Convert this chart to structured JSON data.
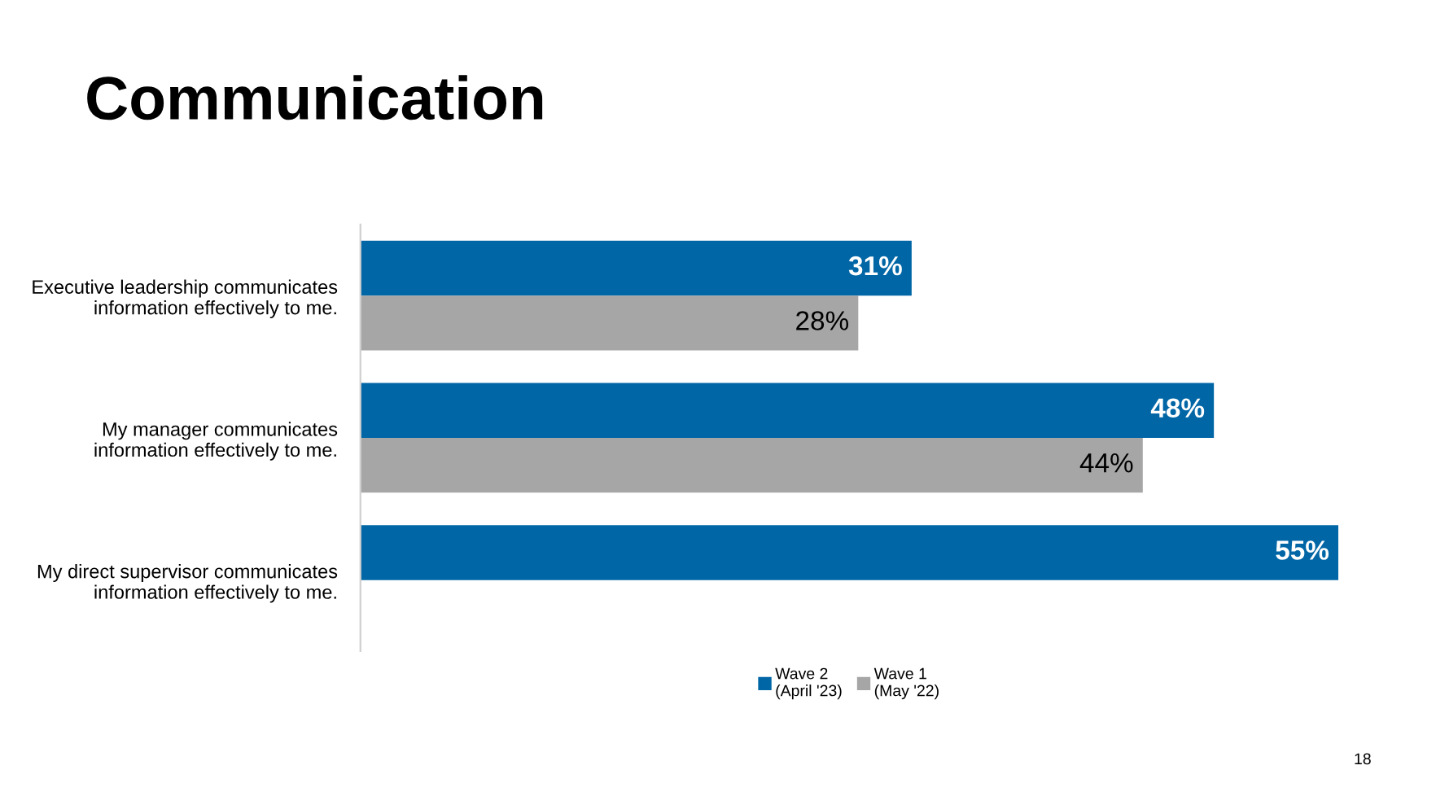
{
  "chart_data": {
    "type": "bar",
    "orientation": "horizontal",
    "title": "Communication",
    "categories": [
      "Executive leadership communicates\ninformation effectively to me.",
      "My manager communicates\ninformation effectively to me.",
      "My direct supervisor communicates\ninformation effectively to me."
    ],
    "series": [
      {
        "name": "Wave 2\n(April '23)",
        "color": "#0066a6",
        "values": [
          31,
          48,
          55
        ],
        "value_labels": [
          "31%",
          "48%",
          "55%"
        ]
      },
      {
        "name": "Wave 1\n(May '22)",
        "color": "#a6a6a6",
        "values": [
          28,
          44,
          null
        ],
        "value_labels": [
          "28%",
          "44%",
          null
        ]
      }
    ],
    "legend": "bottom",
    "grid": false,
    "annotations": [
      "18"
    ]
  }
}
